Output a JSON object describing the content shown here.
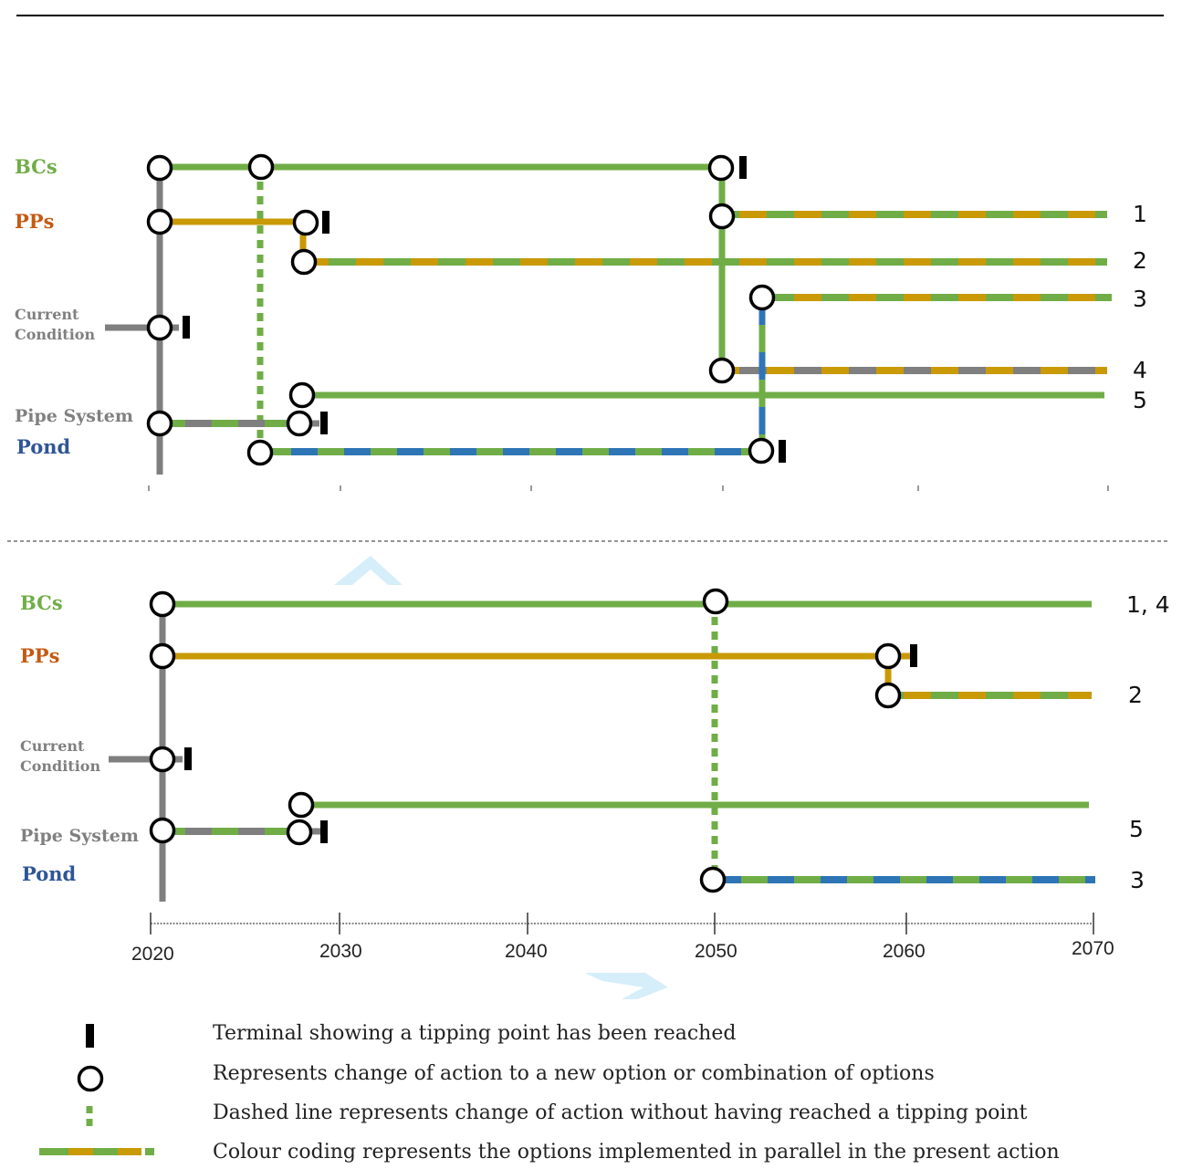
{
  "colors": {
    "green": "#70AD47",
    "orange": "#C99A06",
    "gray": "#7F7F7F",
    "blue": "#2E75B6",
    "bcs_label": "#70AD47",
    "pps_label": "#C55A11",
    "pond_label": "#2F5597",
    "current_label": "#808080"
  },
  "top_panel": {
    "row_labels": {
      "bcs": "BCs",
      "pps": "PPs",
      "current_line1": "Current",
      "current_line2": "Condition",
      "pipe": "Pipe System",
      "pond": "Pond"
    },
    "path_numbers": [
      "1",
      "2",
      "3",
      "4",
      "5"
    ]
  },
  "bottom_panel": {
    "row_labels": {
      "bcs": "BCs",
      "pps": "PPs",
      "current_line1": "Current",
      "current_line2": "Condition",
      "pipe": "Pipe System",
      "pond": "Pond"
    },
    "path_numbers": [
      "1, 4",
      "2",
      "5",
      "3"
    ]
  },
  "axis": {
    "ticks": [
      "2020",
      "2030",
      "2040",
      "2050",
      "2060",
      "2070"
    ]
  },
  "legend": [
    {
      "icon": "terminal-icon",
      "text": "Terminal showing a tipping point has been reached"
    },
    {
      "icon": "circle-node-icon",
      "text": "Represents change of action to a new option or combination of options"
    },
    {
      "icon": "dashed-line-icon",
      "text": "Dashed line represents change of action without having reached a tipping point"
    },
    {
      "icon": "colour-coding-icon",
      "text": "Colour coding represents the options implemented in parallel in the present action"
    }
  ]
}
